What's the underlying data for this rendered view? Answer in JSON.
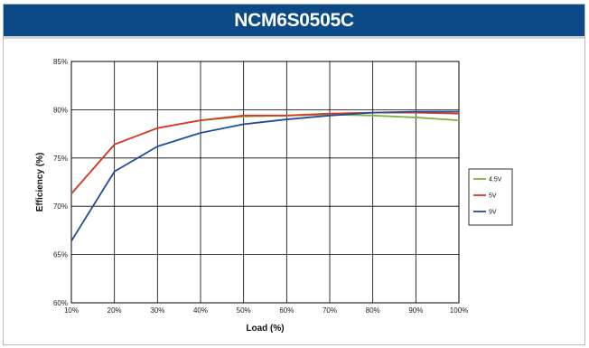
{
  "header": {
    "title": "NCM6S0505C"
  },
  "chart_data": {
    "type": "line",
    "title": "NCM6S0505C",
    "xlabel": "Load (%)",
    "ylabel": "Efficiency (%)",
    "x": [
      10,
      20,
      30,
      40,
      50,
      60,
      70,
      80,
      90,
      100
    ],
    "x_tick_labels": [
      "10%",
      "20%",
      "30%",
      "40%",
      "50%",
      "60%",
      "70%",
      "80%",
      "90%",
      "100%"
    ],
    "y_ticks": [
      60,
      65,
      70,
      75,
      80,
      85
    ],
    "y_tick_labels": [
      "60%",
      "65%",
      "70%",
      "75%",
      "80%",
      "85%"
    ],
    "xlim": [
      10,
      100
    ],
    "ylim": [
      60,
      85
    ],
    "grid": true,
    "legend_position": "right",
    "series": [
      {
        "name": "4.5V",
        "color": "#7fb347",
        "values": [
          71.3,
          76.4,
          78.1,
          78.9,
          79.3,
          79.4,
          79.5,
          79.4,
          79.2,
          78.9
        ]
      },
      {
        "name": "5V",
        "color": "#d9382a",
        "values": [
          71.3,
          76.4,
          78.1,
          78.9,
          79.4,
          79.4,
          79.6,
          79.7,
          79.7,
          79.6
        ]
      },
      {
        "name": "9V",
        "color": "#1f4e9c",
        "values": [
          66.4,
          73.6,
          76.2,
          77.6,
          78.5,
          79.0,
          79.4,
          79.7,
          79.8,
          79.8
        ]
      }
    ]
  }
}
